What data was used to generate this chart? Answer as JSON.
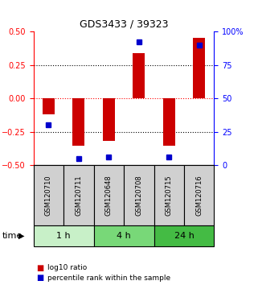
{
  "title": "GDS3433 / 39323",
  "samples": [
    "GSM120710",
    "GSM120711",
    "GSM120648",
    "GSM120708",
    "GSM120715",
    "GSM120716"
  ],
  "log10_ratio": [
    -0.12,
    -0.355,
    -0.32,
    0.34,
    -0.355,
    0.45
  ],
  "percentile_rank": [
    30,
    5,
    6,
    92,
    6,
    90
  ],
  "time_groups": [
    {
      "label": "1 h",
      "start": 0,
      "end": 2,
      "color": "#c8f0c8"
    },
    {
      "label": "4 h",
      "start": 2,
      "end": 4,
      "color": "#78d878"
    },
    {
      "label": "24 h",
      "start": 4,
      "end": 6,
      "color": "#44bb44"
    }
  ],
  "bar_color": "#cc0000",
  "dot_color": "#0000cc",
  "ylim_left": [
    -0.5,
    0.5
  ],
  "ylim_right": [
    0,
    100
  ],
  "yticks_left": [
    -0.5,
    -0.25,
    0,
    0.25,
    0.5
  ],
  "yticks_right": [
    0,
    25,
    50,
    75,
    100
  ],
  "ytick_labels_right": [
    "0",
    "25",
    "50",
    "75",
    "100%"
  ],
  "sample_box_color": "#d0d0d0",
  "bar_width": 0.4
}
